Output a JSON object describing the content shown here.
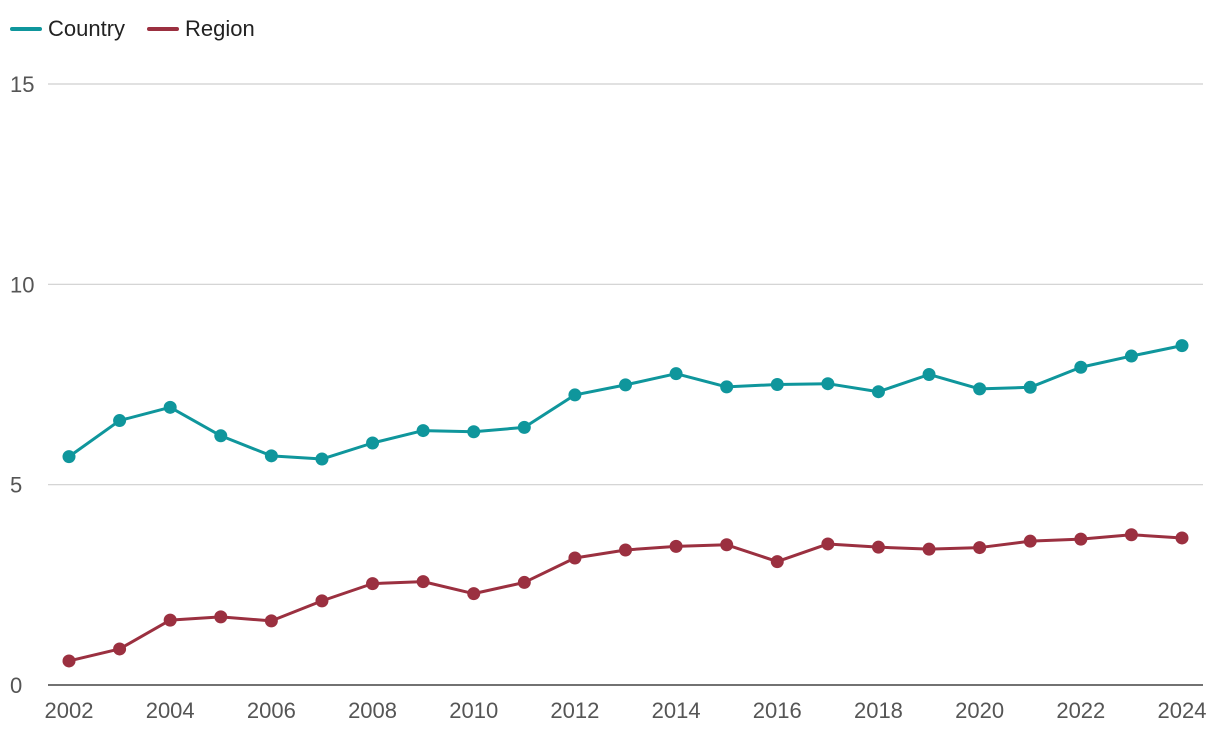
{
  "chart_data": {
    "type": "line",
    "title": "",
    "xlabel": "",
    "ylabel": "",
    "x": [
      2002,
      2003,
      2004,
      2005,
      2006,
      2007,
      2008,
      2009,
      2010,
      2011,
      2012,
      2013,
      2014,
      2015,
      2016,
      2017,
      2018,
      2019,
      2020,
      2021,
      2022,
      2023,
      2024
    ],
    "x_tick_labels": [
      "2002",
      "2004",
      "2006",
      "2008",
      "2010",
      "2012",
      "2014",
      "2016",
      "2018",
      "2020",
      "2022",
      "2024"
    ],
    "y_tick_labels": [
      "0",
      "5",
      "10",
      "15"
    ],
    "ylim": [
      0,
      15
    ],
    "grid": true,
    "legend_position": "top-left",
    "series": [
      {
        "name": "Country",
        "color": "#0f969c",
        "values": [
          5.7,
          6.6,
          6.93,
          6.22,
          5.72,
          5.64,
          6.04,
          6.35,
          6.32,
          6.43,
          7.24,
          7.49,
          7.77,
          7.44,
          7.5,
          7.52,
          7.32,
          7.75,
          7.39,
          7.43,
          7.93,
          8.21,
          8.47
        ]
      },
      {
        "name": "Region",
        "color": "#9b3040",
        "values": [
          0.6,
          0.9,
          1.62,
          1.7,
          1.6,
          2.1,
          2.53,
          2.58,
          2.28,
          2.56,
          3.17,
          3.37,
          3.46,
          3.5,
          3.08,
          3.52,
          3.44,
          3.39,
          3.43,
          3.59,
          3.64,
          3.75,
          3.67
        ]
      }
    ]
  }
}
